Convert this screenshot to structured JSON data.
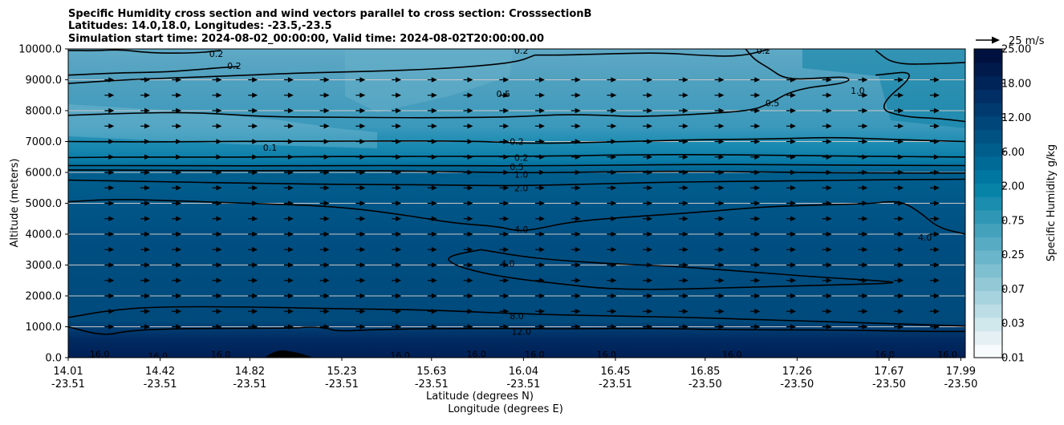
{
  "chart_data": {
    "type": "contour",
    "title_lines": [
      "Specific Humidity cross section and wind vectors parallel to cross section: CrosssectionB",
      "Latitudes: 14.0,18.0, Longitudes: -23.5,-23.5",
      "Simulation start time: 2024-08-02_00:00:00, Valid time: 2024-08-02T20:00:00.00"
    ],
    "ylabel": "Altitude (meters)",
    "xlabel_lat": "Latitude (degrees N)",
    "xlabel_lon": "Longitude (degrees E)",
    "ylim": [
      0,
      10000
    ],
    "yticks": [
      "0.0",
      "1000.0",
      "2000.0",
      "3000.0",
      "4000.0",
      "5000.0",
      "6000.0",
      "7000.0",
      "8000.0",
      "9000.0",
      "10000.0"
    ],
    "xticks": [
      {
        "frac": 0.0,
        "lat": "14.01",
        "lon": "-23.51"
      },
      {
        "frac": 0.1025,
        "lat": "14.42",
        "lon": "-23.51"
      },
      {
        "frac": 0.2025,
        "lat": "14.82",
        "lon": "-23.51"
      },
      {
        "frac": 0.305,
        "lat": "15.23",
        "lon": "-23.51"
      },
      {
        "frac": 0.405,
        "lat": "15.63",
        "lon": "-23.51"
      },
      {
        "frac": 0.5075,
        "lat": "16.04",
        "lon": "-23.51"
      },
      {
        "frac": 0.61,
        "lat": "16.45",
        "lon": "-23.51"
      },
      {
        "frac": 0.71,
        "lat": "16.85",
        "lon": "-23.50"
      },
      {
        "frac": 0.8125,
        "lat": "17.26",
        "lon": "-23.50"
      },
      {
        "frac": 0.915,
        "lat": "17.67",
        "lon": "-23.50"
      },
      {
        "frac": 0.995,
        "lat": "17.99",
        "lon": "-23.50"
      }
    ],
    "colorbar": {
      "label": "Specific Humidity g/kg",
      "tick_labels": [
        "0.01",
        "0.03",
        "0.07",
        "0.25",
        "0.75",
        "2.00",
        "6.00",
        "12.00",
        "18.00",
        "25.00"
      ],
      "colors": [
        "#f7fbfc",
        "#e4f0f3",
        "#d0e7ec",
        "#bcdde5",
        "#a7d3de",
        "#93c9d7",
        "#7ebfd0",
        "#6bb5ca",
        "#57abc3",
        "#43a1bc",
        "#2f97b5",
        "#1b8daf",
        "#0883a8",
        "#0077a1",
        "#006a97",
        "#005e8d",
        "#005283",
        "#004679",
        "#003a6f",
        "#002e65",
        "#002358",
        "#001a4c",
        "#001140"
      ]
    },
    "wind_reference": "25 m/s",
    "contour_levels": [
      "0.2",
      "0.2",
      "0.5",
      "0.5",
      "0.1",
      "0.2",
      "0.2",
      "0.5",
      "1.0",
      "2.0",
      "4.0",
      "4.0",
      "4.0",
      "8.0",
      "12.0",
      "16.0",
      "16.0",
      "16.0",
      "16.0",
      "16.0",
      "16.0",
      "16.0",
      "16.0",
      "16.0",
      "16.0",
      "0.5",
      "0.2",
      "0.2",
      "1.0"
    ],
    "contours": [
      {
        "level": "0.2",
        "points": [
          [
            0,
            9950
          ],
          [
            0.03,
            9940
          ],
          [
            0.06,
            9980
          ],
          [
            0.09,
            9870
          ],
          [
            0.14,
            9860
          ],
          [
            0.17,
            9950
          ]
        ]
      },
      {
        "level": "0.2",
        "points": [
          [
            0,
            9150
          ],
          [
            0.06,
            9230
          ],
          [
            0.11,
            9250
          ],
          [
            0.16,
            9370
          ],
          [
            0.19,
            9430
          ]
        ]
      },
      {
        "level": "0.5",
        "points": [
          [
            0.52,
            9800
          ],
          [
            0.5,
            9570
          ],
          [
            0.44,
            9400
          ],
          [
            0.37,
            9300
          ],
          [
            0.3,
            9250
          ],
          [
            0.24,
            9200
          ],
          [
            0.16,
            9100
          ],
          [
            0.08,
            9030
          ],
          [
            0,
            8880
          ]
        ]
      },
      {
        "level": "0.5",
        "points": [
          [
            0.52,
            9800
          ],
          [
            0.55,
            9800
          ],
          [
            0.6,
            9840
          ],
          [
            0.66,
            9880
          ],
          [
            0.71,
            9780
          ],
          [
            0.75,
            9760
          ],
          [
            0.78,
            9980
          ]
        ]
      },
      {
        "level": "0.5",
        "points": [
          [
            0.9,
            9950
          ],
          [
            0.92,
            9500
          ],
          [
            0.97,
            9520
          ],
          [
            1.0,
            9560
          ]
        ]
      },
      {
        "level": "0.5",
        "points": [
          [
            0.755,
            10000
          ],
          [
            0.765,
            9650
          ],
          [
            0.78,
            9400
          ],
          [
            0.8,
            9000
          ],
          [
            0.84,
            9060
          ],
          [
            0.87,
            9100
          ],
          [
            0.87,
            8900
          ],
          [
            0.81,
            8700
          ],
          [
            0.78,
            8200
          ],
          [
            0.76,
            8000
          ],
          [
            0.7,
            7880
          ],
          [
            0.63,
            7800
          ],
          [
            0.6,
            7850
          ],
          [
            0.55,
            7880
          ],
          [
            0.5,
            7800
          ],
          [
            0.45,
            7780
          ],
          [
            0.38,
            7770
          ],
          [
            0.3,
            7790
          ],
          [
            0.22,
            7800
          ],
          [
            0.14,
            7950
          ],
          [
            0.07,
            7920
          ],
          [
            0,
            7850
          ]
        ]
      },
      {
        "level": "1.0",
        "points": [
          [
            0.9,
            9150
          ],
          [
            0.95,
            9300
          ],
          [
            0.9,
            8100
          ],
          [
            0.93,
            7800
          ],
          [
            0.97,
            7750
          ],
          [
            1.0,
            7650
          ]
        ]
      },
      {
        "level": "0.2",
        "points": [
          [
            0,
            7000
          ],
          [
            0.06,
            6990
          ],
          [
            0.12,
            6990
          ],
          [
            0.2,
            7010
          ],
          [
            0.28,
            7005
          ],
          [
            0.38,
            7020
          ],
          [
            0.46,
            7010
          ],
          [
            0.52,
            6930
          ],
          [
            0.6,
            6980
          ],
          [
            0.7,
            7060
          ],
          [
            0.78,
            7080
          ],
          [
            0.85,
            7140
          ],
          [
            0.91,
            7080
          ],
          [
            0.96,
            7030
          ],
          [
            1.0,
            7000
          ]
        ]
      },
      {
        "level": "0.2",
        "points": [
          [
            0,
            6480
          ],
          [
            0.08,
            6500
          ],
          [
            0.16,
            6490
          ],
          [
            0.25,
            6510
          ],
          [
            0.35,
            6520
          ],
          [
            0.45,
            6520
          ],
          [
            0.55,
            6530
          ],
          [
            0.62,
            6570
          ],
          [
            0.7,
            6580
          ],
          [
            0.8,
            6550
          ],
          [
            0.9,
            6520
          ],
          [
            1.0,
            6500
          ]
        ]
      },
      {
        "level": "0.5",
        "points": [
          [
            0,
            6220
          ],
          [
            0.1,
            6220
          ],
          [
            0.2,
            6210
          ],
          [
            0.3,
            6220
          ],
          [
            0.4,
            6220
          ],
          [
            0.5,
            6210
          ],
          [
            0.6,
            6230
          ],
          [
            0.7,
            6260
          ],
          [
            0.8,
            6250
          ],
          [
            0.9,
            6230
          ],
          [
            1.0,
            6220
          ]
        ]
      },
      {
        "level": "1.0",
        "points": [
          [
            0,
            6080
          ],
          [
            0.1,
            6070
          ],
          [
            0.2,
            6050
          ],
          [
            0.3,
            6060
          ],
          [
            0.4,
            6040
          ],
          [
            0.5,
            5980
          ],
          [
            0.6,
            6020
          ],
          [
            0.7,
            6040
          ],
          [
            0.8,
            6000
          ],
          [
            0.9,
            5980
          ],
          [
            1.0,
            5980
          ]
        ]
      },
      {
        "level": "2.0",
        "points": [
          [
            0,
            5750
          ],
          [
            0.1,
            5700
          ],
          [
            0.2,
            5650
          ],
          [
            0.3,
            5610
          ],
          [
            0.4,
            5600
          ],
          [
            0.5,
            5560
          ],
          [
            0.6,
            5640
          ],
          [
            0.7,
            5700
          ],
          [
            0.8,
            5720
          ],
          [
            0.9,
            5760
          ],
          [
            1.0,
            5780
          ]
        ]
      },
      {
        "level": "4.0",
        "points": [
          [
            0,
            5050
          ],
          [
            0.05,
            5130
          ],
          [
            0.1,
            5100
          ],
          [
            0.2,
            5000
          ],
          [
            0.3,
            4900
          ],
          [
            0.38,
            4600
          ],
          [
            0.43,
            4350
          ],
          [
            0.48,
            4250
          ],
          [
            0.5,
            4100
          ],
          [
            0.52,
            4150
          ],
          [
            0.56,
            4400
          ],
          [
            0.62,
            4550
          ],
          [
            0.7,
            4700
          ],
          [
            0.78,
            4900
          ],
          [
            0.85,
            4950
          ],
          [
            0.9,
            5000
          ],
          [
            0.91,
            5050
          ],
          [
            0.93,
            5050
          ],
          [
            0.95,
            4700
          ],
          [
            0.97,
            4200
          ],
          [
            1.0,
            4000
          ]
        ]
      },
      {
        "level": "4.0",
        "points": [
          [
            0.46,
            3500
          ],
          [
            0.5,
            3300
          ],
          [
            0.54,
            3170
          ],
          [
            0.6,
            3050
          ],
          [
            0.68,
            2950
          ],
          [
            0.75,
            2800
          ],
          [
            0.84,
            2600
          ],
          [
            0.9,
            2500
          ],
          [
            0.93,
            2420
          ],
          [
            0.85,
            2350
          ],
          [
            0.75,
            2280
          ],
          [
            0.66,
            2200
          ],
          [
            0.6,
            2230
          ],
          [
            0.56,
            2350
          ],
          [
            0.5,
            2550
          ],
          [
            0.46,
            2750
          ],
          [
            0.43,
            3000
          ],
          [
            0.42,
            3270
          ],
          [
            0.46,
            3500
          ]
        ]
      },
      {
        "level": "8.0",
        "points": [
          [
            0,
            1300
          ],
          [
            0.05,
            1550
          ],
          [
            0.1,
            1650
          ],
          [
            0.2,
            1650
          ],
          [
            0.3,
            1580
          ],
          [
            0.4,
            1550
          ],
          [
            0.5,
            1420
          ],
          [
            0.6,
            1350
          ],
          [
            0.7,
            1300
          ],
          [
            0.8,
            1200
          ],
          [
            0.9,
            1120
          ],
          [
            1.0,
            1020
          ]
        ]
      },
      {
        "level": "12.0",
        "points": [
          [
            0,
            1000
          ],
          [
            0.04,
            700
          ],
          [
            0.07,
            900
          ],
          [
            0.15,
            950
          ],
          [
            0.25,
            950
          ],
          [
            0.27,
            1000
          ],
          [
            0.29,
            950
          ],
          [
            0.3,
            850
          ],
          [
            0.35,
            920
          ],
          [
            0.45,
            950
          ],
          [
            0.55,
            930
          ],
          [
            0.65,
            950
          ],
          [
            0.75,
            900
          ],
          [
            0.85,
            900
          ],
          [
            0.95,
            850
          ],
          [
            1.0,
            850
          ]
        ]
      }
    ],
    "contour_labels": [
      {
        "text": "0.2",
        "x": 0.165,
        "y": 9850
      },
      {
        "text": "0.2",
        "x": 0.185,
        "y": 9450
      },
      {
        "text": "0.2",
        "x": 0.505,
        "y": 9950
      },
      {
        "text": "0.2",
        "x": 0.775,
        "y": 9950
      },
      {
        "text": "0.5",
        "x": 0.485,
        "y": 8550
      },
      {
        "text": "0.5",
        "x": 0.785,
        "y": 8250
      },
      {
        "text": "1.0",
        "x": 0.88,
        "y": 8650
      },
      {
        "text": "0.1",
        "x": 0.225,
        "y": 6800
      },
      {
        "text": "0.2",
        "x": 0.5,
        "y": 7000
      },
      {
        "text": "0.2",
        "x": 0.505,
        "y": 6480
      },
      {
        "text": "0.5",
        "x": 0.5,
        "y": 6180
      },
      {
        "text": "1.0",
        "x": 0.505,
        "y": 5930
      },
      {
        "text": "2.0",
        "x": 0.505,
        "y": 5500
      },
      {
        "text": "4.0",
        "x": 0.505,
        "y": 4150
      },
      {
        "text": "4.0",
        "x": 0.49,
        "y": 3050
      },
      {
        "text": "4.0",
        "x": 0.955,
        "y": 3900
      },
      {
        "text": "8.0",
        "x": 0.5,
        "y": 1350
      },
      {
        "text": "12.0",
        "x": 0.505,
        "y": 850
      },
      {
        "text": "16.0",
        "x": 0.035,
        "y": 120
      },
      {
        "text": "16.0",
        "x": 0.1,
        "y": 50
      },
      {
        "text": "16.0",
        "x": 0.17,
        "y": 100
      },
      {
        "text": "16.0",
        "x": 0.37,
        "y": 80
      },
      {
        "text": "16.0",
        "x": 0.455,
        "y": 120
      },
      {
        "text": "16.0",
        "x": 0.52,
        "y": 100
      },
      {
        "text": "16.0",
        "x": 0.6,
        "y": 100
      },
      {
        "text": "16.0",
        "x": 0.74,
        "y": 100
      },
      {
        "text": "16.0",
        "x": 0.91,
        "y": 100
      },
      {
        "text": "16.0",
        "x": 0.98,
        "y": 100
      }
    ],
    "wind_vectors": {
      "altitudes": [
        9000,
        8500,
        8000,
        7500,
        7000,
        6500,
        6000,
        5500,
        5000,
        4500,
        4000,
        3500,
        3000,
        2500,
        2000,
        1500,
        1000
      ],
      "x_fracs": [
        0.045,
        0.085,
        0.12,
        0.165,
        0.205,
        0.245,
        0.285,
        0.325,
        0.365,
        0.405,
        0.445,
        0.485,
        0.525,
        0.565,
        0.605,
        0.645,
        0.685,
        0.725,
        0.765,
        0.805,
        0.845,
        0.885,
        0.925,
        0.965
      ],
      "speed_scale": 10
    }
  }
}
